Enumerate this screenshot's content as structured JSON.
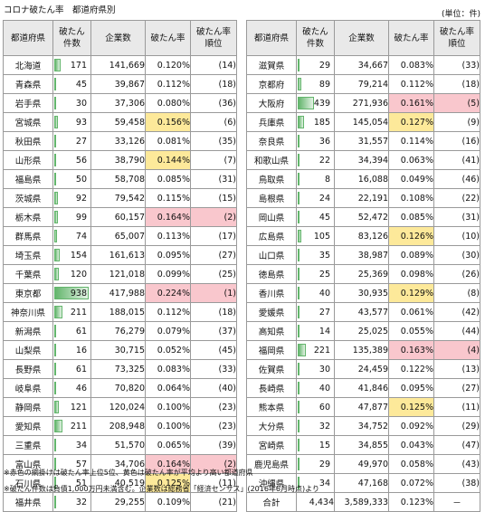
{
  "title": "コロナ破たん率　都道府県別",
  "unit": "(単位：件)",
  "headers": {
    "pref": "都道府県",
    "bankrupt_line1": "破たん",
    "bankrupt_line2": "件数",
    "companies": "企業数",
    "rate": "破たん率",
    "rank_line1": "破たん率",
    "rank_line2": "順位"
  },
  "colors": {
    "bar": "#63b56c",
    "above_average": "#fde99a",
    "top5": "#f9c7cd"
  },
  "left": [
    {
      "pref": "北海道",
      "cases": "171",
      "companies": "141,669",
      "rate": "0.120%",
      "rank": "(14)",
      "cases_num": 171,
      "hl": ""
    },
    {
      "pref": "青森県",
      "cases": "45",
      "companies": "39,867",
      "rate": "0.112%",
      "rank": "(18)",
      "cases_num": 45,
      "hl": ""
    },
    {
      "pref": "岩手県",
      "cases": "30",
      "companies": "37,306",
      "rate": "0.080%",
      "rank": "(36)",
      "cases_num": 30,
      "hl": ""
    },
    {
      "pref": "宮城県",
      "cases": "93",
      "companies": "59,458",
      "rate": "0.156%",
      "rank": "(6)",
      "cases_num": 93,
      "hl": "y"
    },
    {
      "pref": "秋田県",
      "cases": "27",
      "companies": "33,126",
      "rate": "0.081%",
      "rank": "(35)",
      "cases_num": 27,
      "hl": ""
    },
    {
      "pref": "山形県",
      "cases": "56",
      "companies": "38,790",
      "rate": "0.144%",
      "rank": "(7)",
      "cases_num": 56,
      "hl": "y"
    },
    {
      "pref": "福島県",
      "cases": "50",
      "companies": "58,708",
      "rate": "0.085%",
      "rank": "(31)",
      "cases_num": 50,
      "hl": ""
    },
    {
      "pref": "茨城県",
      "cases": "92",
      "companies": "79,542",
      "rate": "0.115%",
      "rank": "(15)",
      "cases_num": 92,
      "hl": ""
    },
    {
      "pref": "栃木県",
      "cases": "99",
      "companies": "60,157",
      "rate": "0.164%",
      "rank": "(2)",
      "cases_num": 99,
      "hl": "p"
    },
    {
      "pref": "群馬県",
      "cases": "74",
      "companies": "65,007",
      "rate": "0.113%",
      "rank": "(17)",
      "cases_num": 74,
      "hl": ""
    },
    {
      "pref": "埼玉県",
      "cases": "154",
      "companies": "161,613",
      "rate": "0.095%",
      "rank": "(27)",
      "cases_num": 154,
      "hl": ""
    },
    {
      "pref": "千葉県",
      "cases": "120",
      "companies": "121,018",
      "rate": "0.099%",
      "rank": "(25)",
      "cases_num": 120,
      "hl": ""
    },
    {
      "pref": "東京都",
      "cases": "938",
      "companies": "417,988",
      "rate": "0.224%",
      "rank": "(1)",
      "cases_num": 938,
      "hl": "p"
    },
    {
      "pref": "神奈川県",
      "cases": "211",
      "companies": "188,015",
      "rate": "0.112%",
      "rank": "(18)",
      "cases_num": 211,
      "hl": ""
    },
    {
      "pref": "新潟県",
      "cases": "61",
      "companies": "76,279",
      "rate": "0.079%",
      "rank": "(37)",
      "cases_num": 61,
      "hl": ""
    },
    {
      "pref": "山梨県",
      "cases": "16",
      "companies": "30,715",
      "rate": "0.052%",
      "rank": "(45)",
      "cases_num": 16,
      "hl": ""
    },
    {
      "pref": "長野県",
      "cases": "61",
      "companies": "73,325",
      "rate": "0.083%",
      "rank": "(33)",
      "cases_num": 61,
      "hl": ""
    },
    {
      "pref": "岐阜県",
      "cases": "46",
      "companies": "70,820",
      "rate": "0.064%",
      "rank": "(40)",
      "cases_num": 46,
      "hl": ""
    },
    {
      "pref": "静岡県",
      "cases": "121",
      "companies": "120,024",
      "rate": "0.100%",
      "rank": "(23)",
      "cases_num": 121,
      "hl": ""
    },
    {
      "pref": "愛知県",
      "cases": "211",
      "companies": "208,948",
      "rate": "0.100%",
      "rank": "(23)",
      "cases_num": 211,
      "hl": ""
    },
    {
      "pref": "三重県",
      "cases": "34",
      "companies": "51,570",
      "rate": "0.065%",
      "rank": "(39)",
      "cases_num": 34,
      "hl": ""
    },
    {
      "pref": "富山県",
      "cases": "57",
      "companies": "34,706",
      "rate": "0.164%",
      "rank": "(2)",
      "cases_num": 57,
      "hl": "p"
    },
    {
      "pref": "石川県",
      "cases": "51",
      "companies": "40,519",
      "rate": "0.125%",
      "rank": "(11)",
      "cases_num": 51,
      "hl": "y"
    },
    {
      "pref": "福井県",
      "cases": "32",
      "companies": "29,255",
      "rate": "0.109%",
      "rank": "(21)",
      "cases_num": 32,
      "hl": ""
    }
  ],
  "right": [
    {
      "pref": "滋賀県",
      "cases": "29",
      "companies": "34,667",
      "rate": "0.083%",
      "rank": "(33)",
      "cases_num": 29,
      "hl": ""
    },
    {
      "pref": "京都府",
      "cases": "89",
      "companies": "79,214",
      "rank": "(18)",
      "rate": "0.112%",
      "cases_num": 89,
      "hl": ""
    },
    {
      "pref": "大阪府",
      "cases": "439",
      "companies": "271,936",
      "rate": "0.161%",
      "rank": "(5)",
      "cases_num": 439,
      "hl": "p"
    },
    {
      "pref": "兵庫県",
      "cases": "185",
      "companies": "145,054",
      "rate": "0.127%",
      "rank": "(9)",
      "cases_num": 185,
      "hl": "y"
    },
    {
      "pref": "奈良県",
      "cases": "36",
      "companies": "31,557",
      "rate": "0.114%",
      "rank": "(16)",
      "cases_num": 36,
      "hl": ""
    },
    {
      "pref": "和歌山県",
      "cases": "22",
      "companies": "34,394",
      "rate": "0.063%",
      "rank": "(41)",
      "cases_num": 22,
      "hl": ""
    },
    {
      "pref": "鳥取県",
      "cases": "8",
      "companies": "16,088",
      "rate": "0.049%",
      "rank": "(46)",
      "cases_num": 8,
      "hl": ""
    },
    {
      "pref": "島根県",
      "cases": "24",
      "companies": "22,191",
      "rate": "0.108%",
      "rank": "(22)",
      "cases_num": 24,
      "hl": ""
    },
    {
      "pref": "岡山県",
      "cases": "45",
      "companies": "52,472",
      "rate": "0.085%",
      "rank": "(31)",
      "cases_num": 45,
      "hl": ""
    },
    {
      "pref": "広島県",
      "cases": "105",
      "companies": "83,126",
      "rate": "0.126%",
      "rank": "(10)",
      "cases_num": 105,
      "hl": "y"
    },
    {
      "pref": "山口県",
      "cases": "35",
      "companies": "38,987",
      "rate": "0.089%",
      "rank": "(30)",
      "cases_num": 35,
      "hl": ""
    },
    {
      "pref": "徳島県",
      "cases": "25",
      "companies": "25,369",
      "rate": "0.098%",
      "rank": "(26)",
      "cases_num": 25,
      "hl": ""
    },
    {
      "pref": "香川県",
      "cases": "40",
      "companies": "30,935",
      "rate": "0.129%",
      "rank": "(8)",
      "cases_num": 40,
      "hl": "y"
    },
    {
      "pref": "愛媛県",
      "cases": "27",
      "companies": "43,577",
      "rate": "0.061%",
      "rank": "(42)",
      "cases_num": 27,
      "hl": ""
    },
    {
      "pref": "高知県",
      "cases": "14",
      "companies": "25,025",
      "rate": "0.055%",
      "rank": "(44)",
      "cases_num": 14,
      "hl": ""
    },
    {
      "pref": "福岡県",
      "cases": "221",
      "companies": "135,389",
      "rate": "0.163%",
      "rank": "(4)",
      "cases_num": 221,
      "hl": "p"
    },
    {
      "pref": "佐賀県",
      "cases": "30",
      "companies": "24,459",
      "rate": "0.122%",
      "rank": "(13)",
      "cases_num": 30,
      "hl": ""
    },
    {
      "pref": "長崎県",
      "cases": "40",
      "companies": "41,846",
      "rate": "0.095%",
      "rank": "(27)",
      "cases_num": 40,
      "hl": ""
    },
    {
      "pref": "熊本県",
      "cases": "60",
      "companies": "47,877",
      "rate": "0.125%",
      "rank": "(11)",
      "cases_num": 60,
      "hl": "y"
    },
    {
      "pref": "大分県",
      "cases": "32",
      "companies": "34,752",
      "rate": "0.092%",
      "rank": "(29)",
      "cases_num": 32,
      "hl": ""
    },
    {
      "pref": "宮崎県",
      "cases": "15",
      "companies": "34,855",
      "rate": "0.043%",
      "rank": "(47)",
      "cases_num": 15,
      "hl": ""
    },
    {
      "pref": "鹿児島県",
      "cases": "29",
      "companies": "49,970",
      "rate": "0.058%",
      "rank": "(43)",
      "cases_num": 29,
      "hl": ""
    },
    {
      "pref": "沖縄県",
      "cases": "34",
      "companies": "47,168",
      "rate": "0.072%",
      "rank": "(38)",
      "cases_num": 34,
      "hl": ""
    }
  ],
  "total": {
    "label": "合計",
    "cases": "4,434",
    "companies": "3,589,333",
    "rate": "0.123%",
    "rank": "－"
  },
  "notes": [
    "※赤色の網掛けは破たん率上位5位、黄色は破たん率が平均より高い都道府県",
    "※破たん件数は負債1,000万円未満含む。企業数は総務省「経済センサス」(2016年6月時点)より"
  ]
}
